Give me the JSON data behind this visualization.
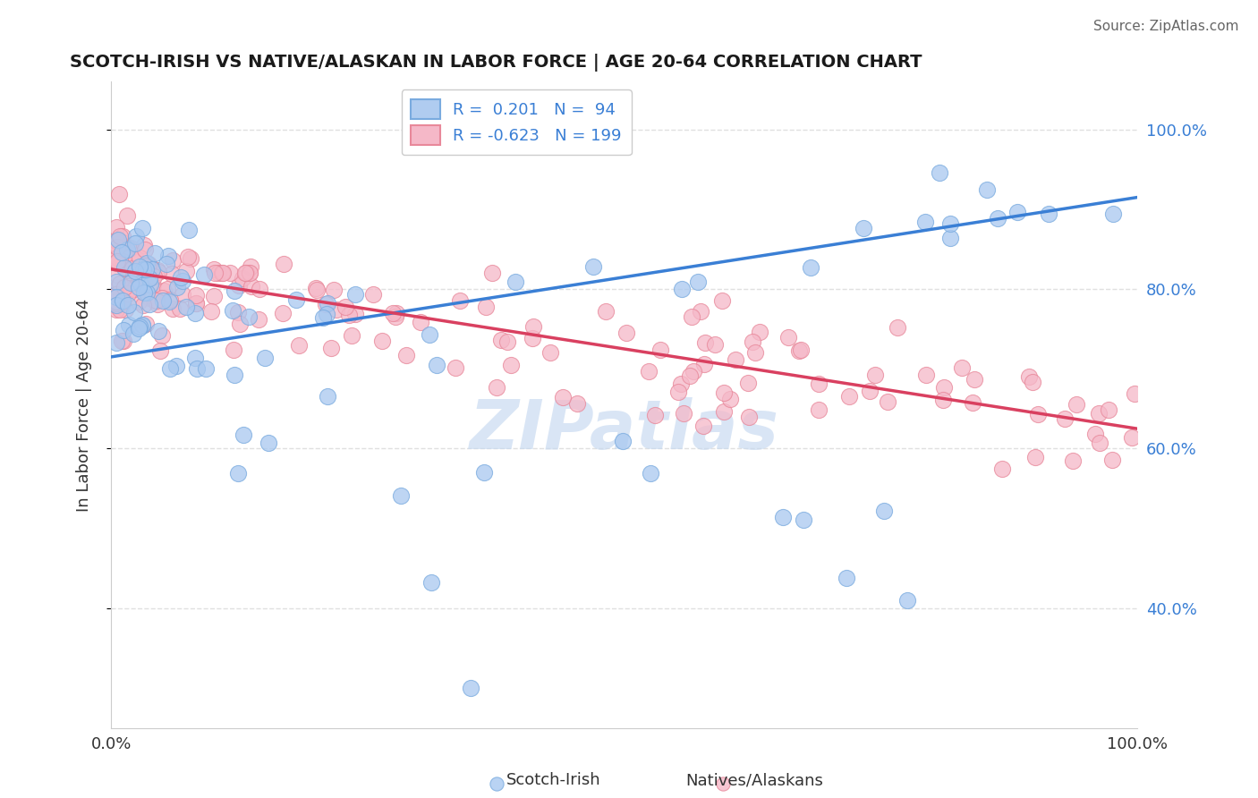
{
  "title": "SCOTCH-IRISH VS NATIVE/ALASKAN IN LABOR FORCE | AGE 20-64 CORRELATION CHART",
  "source_text": "Source: ZipAtlas.com",
  "ylabel": "In Labor Force | Age 20-64",
  "watermark": "ZIPatlas",
  "xlim": [
    0.0,
    1.0
  ],
  "ylim": [
    0.25,
    1.06
  ],
  "right_ytick_values": [
    0.4,
    0.6,
    0.8,
    1.0
  ],
  "right_ytick_labels": [
    "40.0%",
    "60.0%",
    "80.0%",
    "100.0%"
  ],
  "legend_line1": "R =  0.201   N =  94",
  "legend_line2": "R = -0.623   N = 199",
  "series1_color": "#a8c8f0",
  "series2_color": "#f5b8c8",
  "series1_edge": "#7aabdf",
  "series2_edge": "#e8889a",
  "line1_color": "#3a7fd5",
  "line2_color": "#d94060",
  "line1_start_y": 0.715,
  "line1_end_y": 0.915,
  "line2_start_y": 0.825,
  "line2_end_y": 0.625,
  "title_color": "#1a1a1a",
  "source_color": "#666666",
  "watermark_color": "#c5d8f0",
  "grid_color": "#e0e0e0",
  "background_color": "#ffffff",
  "legend_patch1_face": "#b0ccf0",
  "legend_patch1_edge": "#7aabdf",
  "legend_patch2_face": "#f5b8c8",
  "legend_patch2_edge": "#e8889a",
  "legend_text_color": "#3a7fd5"
}
